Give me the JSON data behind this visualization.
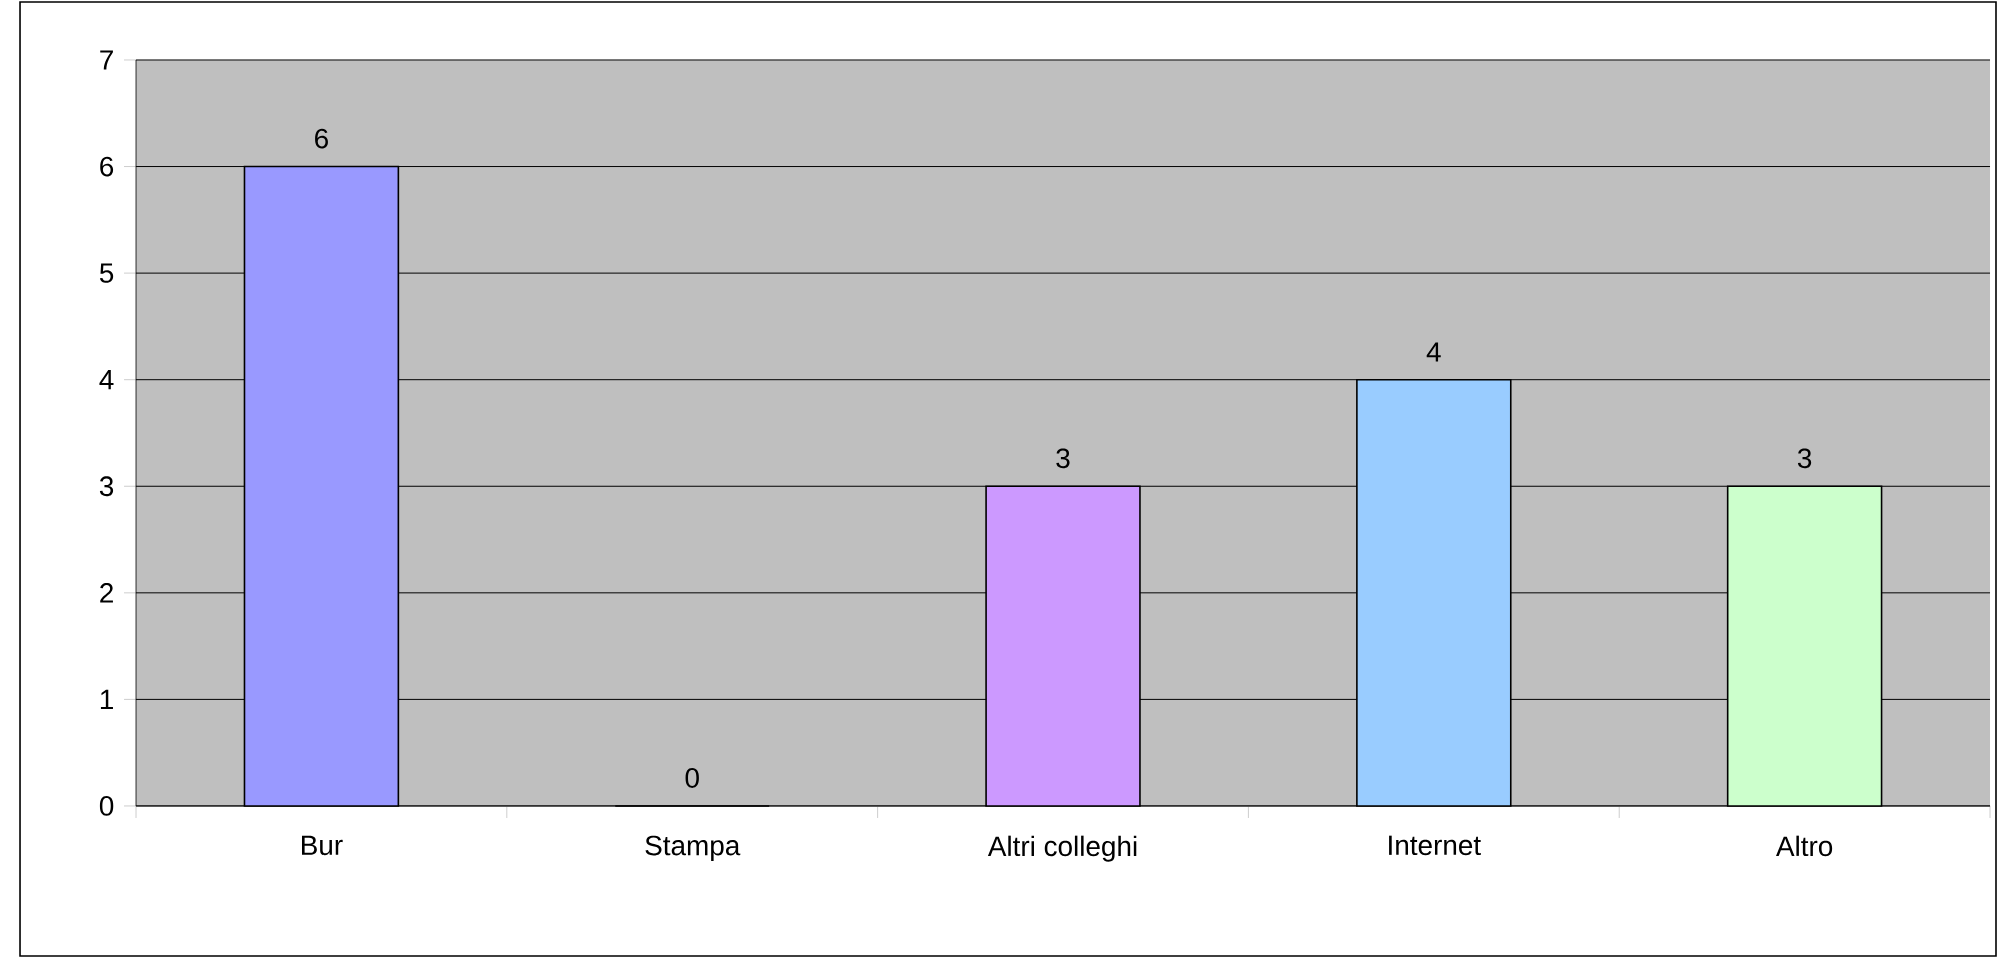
{
  "chart_data": {
    "type": "bar",
    "categories": [
      "Bur",
      "Stampa",
      "Altri colleghi",
      "Internet",
      "Altro"
    ],
    "values": [
      6,
      0,
      3,
      4,
      3
    ],
    "colors": [
      "#9999ff",
      "#993366",
      "#cc99ff",
      "#99ccff",
      "#ccffcc"
    ],
    "ylim": [
      0,
      7
    ],
    "yticks": [
      0,
      1,
      2,
      3,
      4,
      5,
      6,
      7
    ],
    "grid": "y",
    "data_labels": true
  }
}
